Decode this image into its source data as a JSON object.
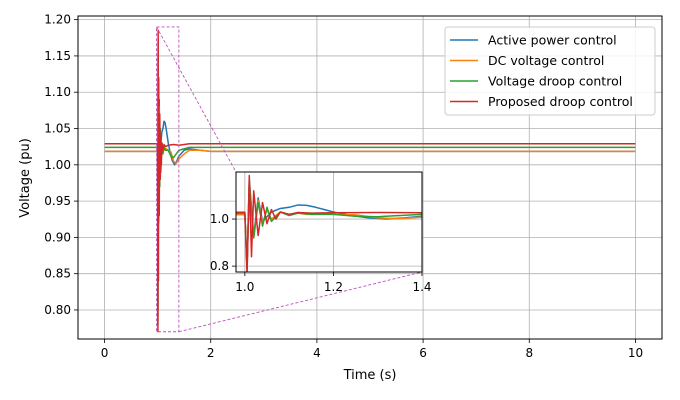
{
  "chart_data": {
    "type": "line",
    "title": "",
    "xlabel": "Time (s)",
    "ylabel": "Voltage (pu)",
    "xlim": [
      -0.5,
      10.5
    ],
    "ylim": [
      0.76,
      1.205
    ],
    "xticks": [
      0,
      2,
      4,
      6,
      8,
      10
    ],
    "yticks": [
      0.8,
      0.85,
      0.9,
      0.95,
      1.0,
      1.05,
      1.1,
      1.15,
      1.2
    ],
    "xtick_labels": [
      "0",
      "2",
      "4",
      "6",
      "8",
      "10"
    ],
    "ytick_labels": [
      "0.80",
      "0.85",
      "0.90",
      "0.95",
      "1.00",
      "1.05",
      "1.10",
      "1.15",
      "1.20"
    ],
    "grid": true,
    "legend_position": "top-right",
    "series": [
      {
        "name": "Active power control",
        "color": "#1f77b4",
        "steady": 1.0185,
        "x": [
          0,
          1.0,
          1.005,
          1.01,
          1.02,
          1.03,
          1.04,
          1.06,
          1.08,
          1.1,
          1.12,
          1.14,
          1.16,
          1.18,
          1.2,
          1.24,
          1.28,
          1.32,
          1.36,
          1.4,
          1.5,
          1.6,
          1.8,
          2.0,
          10
        ],
        "y": [
          1.0185,
          1.0185,
          0.8,
          1.17,
          0.93,
          1.09,
          0.99,
          1.03,
          1.045,
          1.05,
          1.06,
          1.058,
          1.05,
          1.04,
          1.03,
          1.015,
          1.005,
          1.0,
          1.005,
          1.012,
          1.02,
          1.022,
          1.02,
          1.0185,
          1.0185
        ]
      },
      {
        "name": "DC voltage control",
        "color": "#ff7f0e",
        "steady": 1.0185,
        "x": [
          0,
          1.0,
          1.005,
          1.01,
          1.02,
          1.03,
          1.04,
          1.05,
          1.06,
          1.08,
          1.1,
          1.12,
          1.14,
          1.16,
          1.2,
          1.25,
          1.3,
          1.35,
          1.4,
          1.5,
          1.6,
          1.8,
          2.0,
          10
        ],
        "y": [
          1.0185,
          1.0185,
          0.79,
          1.16,
          0.92,
          1.08,
          0.98,
          1.04,
          1.0,
          1.03,
          1.02,
          1.025,
          1.02,
          1.022,
          1.02,
          1.018,
          1.005,
          1.002,
          1.008,
          1.015,
          1.02,
          1.02,
          1.0185,
          1.0185
        ]
      },
      {
        "name": "Voltage droop control",
        "color": "#2ca02c",
        "steady": 1.024,
        "x": [
          0,
          1.0,
          1.005,
          1.01,
          1.02,
          1.03,
          1.04,
          1.05,
          1.06,
          1.08,
          1.1,
          1.12,
          1.15,
          1.2,
          1.25,
          1.3,
          1.35,
          1.4,
          1.6,
          2.0,
          10
        ],
        "y": [
          1.024,
          1.024,
          0.78,
          1.15,
          0.92,
          1.07,
          0.97,
          1.05,
          0.99,
          1.03,
          1.015,
          1.025,
          1.02,
          1.02,
          1.012,
          1.01,
          1.015,
          1.02,
          1.024,
          1.024,
          1.024
        ]
      },
      {
        "name": "Proposed droop control",
        "color": "#d62728",
        "steady": 1.029,
        "x": [
          0,
          1.0,
          1.005,
          1.01,
          1.015,
          1.02,
          1.03,
          1.04,
          1.05,
          1.06,
          1.07,
          1.08,
          1.1,
          1.12,
          1.15,
          1.2,
          1.3,
          1.4,
          1.6,
          2.0,
          10
        ],
        "y": [
          1.029,
          1.029,
          0.77,
          1.185,
          0.84,
          1.12,
          0.93,
          1.07,
          0.98,
          1.04,
          1.0,
          1.03,
          1.02,
          1.028,
          1.025,
          1.027,
          1.028,
          1.027,
          1.029,
          1.029,
          1.029
        ]
      }
    ],
    "inset": {
      "xlim": [
        0.98,
        1.4
      ],
      "ylim": [
        0.775,
        1.2
      ],
      "xticks": [
        1.0,
        1.2,
        1.4
      ],
      "xtick_labels": [
        "1.0",
        "1.2",
        "1.4"
      ],
      "yticks": [
        0.8,
        1.0
      ],
      "ytick_labels": [
        "0.8",
        "1.0"
      ],
      "grid": true,
      "zoom_region": {
        "x": [
          0.98,
          1.4
        ],
        "y": [
          0.77,
          1.19
        ]
      }
    }
  }
}
